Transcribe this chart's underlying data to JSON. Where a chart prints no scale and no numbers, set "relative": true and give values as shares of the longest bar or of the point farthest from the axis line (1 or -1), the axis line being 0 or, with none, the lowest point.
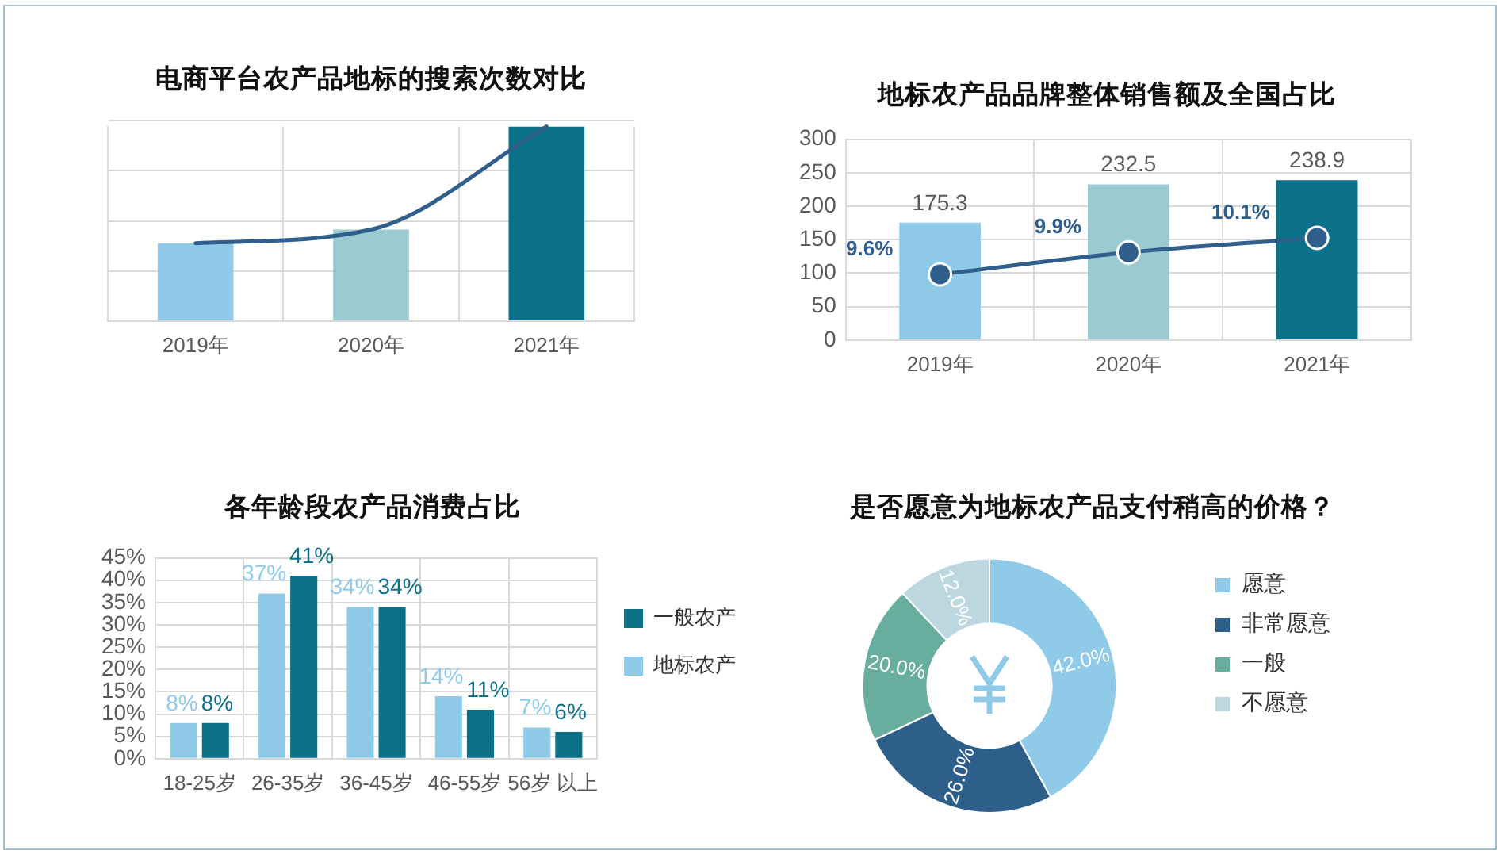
{
  "chart_data": [
    {
      "type": "bar",
      "title": "电商平台农产品地标的搜索次数对比",
      "categories": [
        "2019年",
        "2020年",
        "2021年"
      ],
      "relative": true,
      "grid": true,
      "marker": "none",
      "series": [
        {
          "type": "bar",
          "colors": [
            "#8fcbe8",
            "#9bcbd1",
            "#0b7189"
          ],
          "values": [
            0.4,
            0.47,
            1
          ]
        },
        {
          "type": "line",
          "color": "#2f5f8a",
          "values": [
            0.4,
            0.47,
            1
          ]
        }
      ]
    },
    {
      "type": "bar",
      "title": "地标农产品品牌整体销售额及全国占比",
      "categories": [
        "2019年",
        "2020年",
        "2021年"
      ],
      "ylim": [
        0,
        300
      ],
      "yticks": [
        0,
        50,
        100,
        150,
        200,
        250,
        300
      ],
      "y2lim": [
        8.7,
        11.45
      ],
      "grid": true,
      "marker": "circle",
      "series": [
        {
          "type": "bar",
          "colors": [
            "#8fcbe8",
            "#9bcbd1",
            "#0b7189"
          ],
          "values": [
            175.3,
            232.5,
            238.9
          ],
          "value_labels": [
            "175.3",
            "232.5",
            "238.9"
          ]
        },
        {
          "type": "line",
          "axis": "y2",
          "color": "#2f5f8a",
          "values": [
            9.6,
            9.9,
            10.1
          ],
          "value_labels": [
            "9.6%",
            "9.9%",
            "10.1%"
          ]
        }
      ]
    },
    {
      "type": "bar",
      "title": "各年龄段农产品消费占比",
      "categories": [
        "18-25岁",
        "26-35岁",
        "36-45岁",
        "46-55岁",
        "56岁 以上"
      ],
      "ylim": [
        0,
        45
      ],
      "yticks": [
        {
          "value": 0,
          "label": "0%"
        },
        {
          "value": 5,
          "label": "5%"
        },
        {
          "value": 10,
          "label": "10%"
        },
        {
          "value": 15,
          "label": "15%"
        },
        {
          "value": 20,
          "label": "20%"
        },
        {
          "value": 25,
          "label": "25%"
        },
        {
          "value": 30,
          "label": "30%"
        },
        {
          "value": 35,
          "label": "35%"
        },
        {
          "value": 40,
          "label": "40%"
        },
        {
          "value": 45,
          "label": "45%"
        }
      ],
      "grid": true,
      "legend": "right",
      "series": [
        {
          "name": "地标农产",
          "color": "#8fcbe8",
          "values": [
            8,
            37,
            34,
            14,
            7
          ],
          "value_labels": [
            "8%",
            "37%",
            "34%",
            "14%",
            "7%"
          ]
        },
        {
          "name": "一般农产",
          "color": "#0b7189",
          "values": [
            8,
            41,
            34,
            11,
            6
          ],
          "value_labels": [
            "8%",
            "41%",
            "34%",
            "11%",
            "6%"
          ]
        }
      ]
    },
    {
      "type": "donut",
      "title": "是否愿意为地标农产品支付稍高的价格？",
      "categories": [
        "愿意",
        "非常愿意",
        "一般",
        "不愿意"
      ],
      "values": [
        42,
        26,
        20,
        12
      ],
      "colors": [
        "#8fcbe8",
        "#2e5f8a",
        "#68ae9e",
        "#bcd7e0"
      ],
      "value_labels": [
        "42.0%",
        "26.0%",
        "20.0%",
        "12.0%"
      ],
      "legend": "right"
    }
  ]
}
